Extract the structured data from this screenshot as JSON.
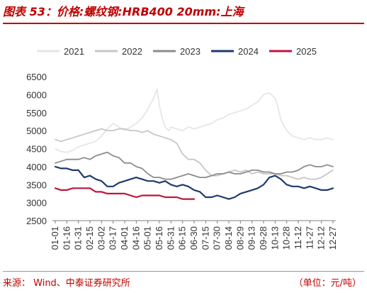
{
  "figure": {
    "title": "图表 53：价格:螺纹钢:HRB400 20mm:上海",
    "source": "来源：  Wind、中泰证券研究所",
    "unit": "（单位：元/吨）"
  },
  "colors": {
    "title": "#c00000",
    "s2021": "#e6e6e6",
    "s2022": "#c6c6c6",
    "s2023": "#8c8c8c",
    "s2024": "#1f3a6e",
    "s2025": "#c0143c"
  },
  "chart_data": {
    "type": "line",
    "legend_position": "top",
    "grid": false,
    "ylim": [
      2500,
      6500
    ],
    "yticks": [
      "6500",
      "6000",
      "5500",
      "5000",
      "4500",
      "4000",
      "3500",
      "3000",
      "2500"
    ],
    "x_labels": [
      "01-01",
      "01-16",
      "01-31",
      "02-15",
      "03-02",
      "03-17",
      "04-01",
      "04-16",
      "05-01",
      "05-16",
      "05-31",
      "06-15",
      "06-30",
      "07-15",
      "07-30",
      "08-14",
      "08-29",
      "09-13",
      "09-28",
      "10-13",
      "10-28",
      "11-12",
      "11-27",
      "12-12",
      "12-27"
    ],
    "series": [
      {
        "name": "2021",
        "x": [
          0,
          0.5,
          1,
          1.5,
          2,
          2.5,
          3,
          3.5,
          4,
          4.5,
          5,
          5.5,
          6,
          6.5,
          7,
          7.5,
          8,
          8.5,
          8.8,
          9,
          9.2,
          9.5,
          9.8,
          10,
          10.5,
          11,
          11.5,
          12,
          12.5,
          13,
          13.5,
          14,
          14.5,
          15,
          15.5,
          16,
          16.5,
          17,
          17.5,
          18,
          18.5,
          19,
          19.2,
          19.5,
          20,
          20.5,
          21,
          21.5,
          22,
          22.5,
          23,
          23.5,
          24
        ],
        "values": [
          4500,
          4420,
          4400,
          4450,
          4550,
          4600,
          4650,
          4700,
          4850,
          5050,
          5200,
          5100,
          5000,
          5100,
          5200,
          5350,
          5600,
          5900,
          6150,
          5700,
          5400,
          5100,
          5000,
          5100,
          5050,
          5000,
          5100,
          5050,
          5100,
          5150,
          5200,
          5300,
          5350,
          5450,
          5500,
          5550,
          5600,
          5700,
          5800,
          6000,
          6050,
          5900,
          5700,
          5300,
          5000,
          4850,
          4800,
          4750,
          4800,
          4750,
          4750,
          4800,
          4750
        ]
      },
      {
        "name": "2022",
        "x": [
          0,
          0.5,
          1,
          1.5,
          2,
          2.5,
          3,
          3.5,
          4,
          4.5,
          5,
          5.5,
          6,
          6.5,
          7,
          7.5,
          8,
          8.5,
          9,
          9.5,
          10,
          10.5,
          11,
          11.5,
          12,
          12.5,
          13,
          13.5,
          14,
          14.5,
          15,
          15.5,
          16,
          16.5,
          17,
          17.5,
          18,
          18.5,
          19,
          19.5,
          20,
          20.5,
          21,
          21.5,
          22,
          22.5,
          23,
          23.5,
          24
        ],
        "values": [
          4750,
          4700,
          4750,
          4800,
          4850,
          4900,
          4950,
          5000,
          5050,
          5000,
          5000,
          5050,
          5050,
          5000,
          5000,
          4950,
          5000,
          4900,
          4850,
          4800,
          4750,
          4650,
          4350,
          4200,
          4200,
          4100,
          3900,
          3750,
          3750,
          3800,
          3850,
          3900,
          3850,
          3900,
          3800,
          3850,
          3800,
          3800,
          3800,
          3750,
          3750,
          3700,
          3650,
          3700,
          3650,
          3650,
          3700,
          3800,
          3900
        ]
      },
      {
        "name": "2023",
        "x": [
          0,
          0.5,
          1,
          1.5,
          2,
          2.5,
          3,
          3.5,
          4,
          4.5,
          5,
          5.5,
          6,
          6.5,
          7,
          7.5,
          8,
          8.5,
          9,
          9.5,
          10,
          10.5,
          11,
          11.5,
          12,
          12.5,
          13,
          13.5,
          14,
          14.5,
          15,
          15.5,
          16,
          16.5,
          17,
          17.5,
          18,
          18.5,
          19,
          19.5,
          20,
          20.5,
          21,
          21.5,
          22,
          22.5,
          23,
          23.5,
          24
        ],
        "values": [
          4100,
          4150,
          4200,
          4200,
          4200,
          4250,
          4200,
          4300,
          4350,
          4400,
          4300,
          4250,
          4100,
          4100,
          4000,
          3950,
          3800,
          3700,
          3700,
          3650,
          3650,
          3700,
          3750,
          3800,
          3750,
          3700,
          3700,
          3750,
          3800,
          3800,
          3850,
          3800,
          3800,
          3850,
          3900,
          3900,
          3850,
          3850,
          3800,
          3800,
          3850,
          3850,
          3900,
          4000,
          4050,
          4000,
          4000,
          4050,
          4000
        ]
      },
      {
        "name": "2024",
        "x": [
          0,
          0.5,
          1,
          1.5,
          2,
          2.5,
          3,
          3.5,
          4,
          4.5,
          5,
          5.5,
          6,
          6.5,
          7,
          7.5,
          8,
          8.5,
          9,
          9.5,
          10,
          10.5,
          11,
          11.5,
          12,
          12.5,
          13,
          13.5,
          14,
          14.5,
          15,
          15.5,
          16,
          16.5,
          17,
          17.5,
          18,
          18.5,
          19,
          19.5,
          20,
          20.5,
          21,
          21.5,
          22,
          22.5,
          23,
          23.5,
          24
        ],
        "values": [
          4000,
          3950,
          3950,
          3900,
          3900,
          3700,
          3750,
          3650,
          3600,
          3450,
          3450,
          3550,
          3600,
          3650,
          3700,
          3650,
          3600,
          3600,
          3550,
          3600,
          3500,
          3450,
          3500,
          3450,
          3350,
          3300,
          3150,
          3150,
          3200,
          3150,
          3100,
          3150,
          3250,
          3300,
          3350,
          3400,
          3500,
          3700,
          3750,
          3650,
          3500,
          3450,
          3450,
          3400,
          3450,
          3400,
          3350,
          3350,
          3400
        ]
      },
      {
        "name": "2025",
        "x": [
          0,
          0.5,
          1,
          1.5,
          2,
          2.5,
          3,
          3.5,
          4,
          4.5,
          5,
          5.5,
          6,
          6.5,
          7,
          7.5,
          8,
          8.5,
          9,
          9.5,
          10,
          10.5,
          11,
          11.5,
          12
        ],
        "values": [
          3400,
          3350,
          3350,
          3400,
          3400,
          3400,
          3400,
          3300,
          3300,
          3250,
          3250,
          3250,
          3250,
          3200,
          3150,
          3200,
          3200,
          3200,
          3200,
          3150,
          3150,
          3150,
          3100,
          3100,
          3100
        ]
      }
    ]
  }
}
